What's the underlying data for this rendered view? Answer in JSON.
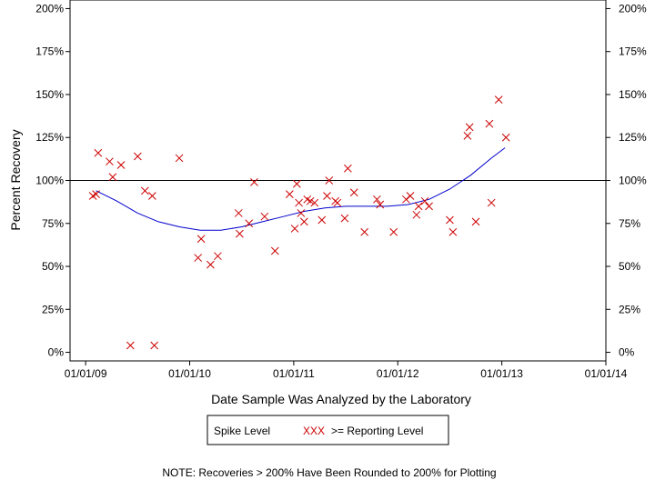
{
  "chart_data": {
    "type": "scatter",
    "ylabel": "Percent Recovery",
    "xlabel": "Date Sample Was Analyzed by the Laboratory",
    "x_ticks": [
      "01/01/09",
      "01/01/10",
      "01/01/11",
      "01/01/12",
      "01/01/13",
      "01/01/14"
    ],
    "y_ticks": [
      "0%",
      "25%",
      "50%",
      "75%",
      "100%",
      "125%",
      "150%",
      "175%",
      "200%"
    ],
    "y_tick_values": [
      0,
      25,
      50,
      75,
      100,
      125,
      150,
      175,
      200
    ],
    "xlim": [
      2008.85,
      2014.0
    ],
    "ylim": [
      -5,
      205
    ],
    "reference_line": 100,
    "series": [
      {
        "name": "Spike Level",
        "style": "line",
        "color": "#0000cc",
        "x": [
          2009.1,
          2009.3,
          2009.5,
          2009.7,
          2009.9,
          2010.1,
          2010.3,
          2010.5,
          2010.7,
          2010.9,
          2011.1,
          2011.3,
          2011.5,
          2011.7,
          2011.9,
          2012.1,
          2012.3,
          2012.5,
          2012.7,
          2012.9,
          2013.03
        ],
        "values": [
          94,
          88,
          81,
          76,
          73,
          71,
          71,
          73,
          76,
          79,
          82,
          84,
          85,
          85,
          85,
          86,
          89,
          95,
          103,
          113,
          119
        ]
      },
      {
        "name": ">= Reporting Level",
        "style": "marker-x",
        "color": "#cc0000",
        "x": [
          2009.07,
          2009.1,
          2009.12,
          2009.23,
          2009.26,
          2009.34,
          2009.43,
          2009.5,
          2009.57,
          2009.64,
          2009.66,
          2009.9,
          2010.08,
          2010.11,
          2010.2,
          2010.27,
          2010.47,
          2010.48,
          2010.57,
          2010.62,
          2010.72,
          2010.82,
          2010.96,
          2011.01,
          2011.03,
          2011.05,
          2011.07,
          2011.1,
          2011.13,
          2011.16,
          2011.2,
          2011.27,
          2011.32,
          2011.34,
          2011.4,
          2011.42,
          2011.49,
          2011.52,
          2011.58,
          2011.68,
          2011.8,
          2011.83,
          2011.96,
          2012.08,
          2012.12,
          2012.18,
          2012.2,
          2012.26,
          2012.3,
          2012.5,
          2012.53,
          2012.67,
          2012.69,
          2012.75,
          2012.88,
          2012.9,
          2012.97,
          2013.04
        ],
        "values": [
          91,
          92,
          116,
          111,
          102,
          109,
          4,
          114,
          94,
          91,
          4,
          113,
          55,
          66,
          51,
          56,
          81,
          69,
          75,
          99,
          79,
          59,
          92,
          72,
          98,
          87,
          81,
          76,
          89,
          88,
          87,
          77,
          91,
          100,
          88,
          87,
          78,
          107,
          93,
          70,
          89,
          86,
          70,
          89,
          91,
          80,
          85,
          88,
          85,
          77,
          70,
          126,
          131,
          76,
          133,
          87,
          147,
          125
        ]
      }
    ],
    "legend": {
      "position": "bottom-center",
      "line_label": "Spike Level",
      "marker_symbol": "XXX",
      "marker_label": ">= Reporting Level"
    },
    "note": "NOTE: Recoveries > 200% Have Been Rounded to 200% for Plotting"
  }
}
